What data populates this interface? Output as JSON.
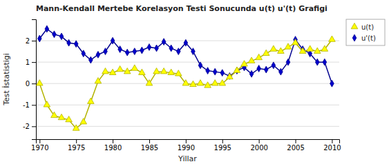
{
  "chart_data": {
    "type": "line",
    "title": "Mann-Kendall Mertebe Korelasyon Testi Sonucunda u(t) u'(t) Grafigi",
    "x_label": "Yillar",
    "y_label": "Test İstatistigi",
    "x": [
      1970,
      1971,
      1972,
      1973,
      1974,
      1975,
      1976,
      1977,
      1978,
      1979,
      1980,
      1981,
      1982,
      1983,
      1984,
      1985,
      1986,
      1987,
      1988,
      1989,
      1990,
      1991,
      1992,
      1993,
      1994,
      1995,
      1996,
      1997,
      1998,
      1999,
      2000,
      2001,
      2002,
      2003,
      2004,
      2005,
      2006,
      2007,
      2008,
      2009,
      2010
    ],
    "series": [
      {
        "name": "u(t)",
        "color": "#ffff00",
        "marker": "triangle",
        "values": [
          0.0,
          -1.0,
          -1.5,
          -1.6,
          -1.7,
          -2.1,
          -1.8,
          -0.85,
          0.1,
          0.55,
          0.5,
          0.65,
          0.55,
          0.7,
          0.5,
          0.0,
          0.55,
          0.55,
          0.5,
          0.45,
          0.0,
          -0.05,
          0.0,
          -0.1,
          0.0,
          0.0,
          0.3,
          0.6,
          0.9,
          1.05,
          1.2,
          1.4,
          1.6,
          1.5,
          1.7,
          1.9,
          1.5,
          1.6,
          1.5,
          1.6,
          2.05
        ]
      },
      {
        "name": "u'(t)",
        "color": "#0000cc",
        "marker": "diamond",
        "values": [
          2.1,
          2.55,
          2.3,
          2.2,
          1.9,
          1.85,
          1.4,
          1.1,
          1.35,
          1.5,
          2.0,
          1.6,
          1.45,
          1.5,
          1.55,
          1.7,
          1.65,
          1.95,
          1.65,
          1.5,
          1.9,
          1.5,
          0.85,
          0.6,
          0.55,
          0.5,
          0.35,
          0.6,
          0.75,
          0.45,
          0.7,
          0.65,
          0.85,
          0.55,
          1.0,
          2.05,
          1.6,
          1.4,
          1.0,
          1.0,
          0.0
        ]
      }
    ],
    "xlim": [
      1969.5,
      2011
    ],
    "ylim": [
      -2.6,
      3.0
    ],
    "xticks": [
      1970,
      1975,
      1980,
      1985,
      1990,
      1995,
      2000,
      2005,
      2010
    ],
    "yticks": [
      -2,
      -1,
      0,
      1,
      2
    ],
    "grid": true,
    "legend": "right"
  }
}
